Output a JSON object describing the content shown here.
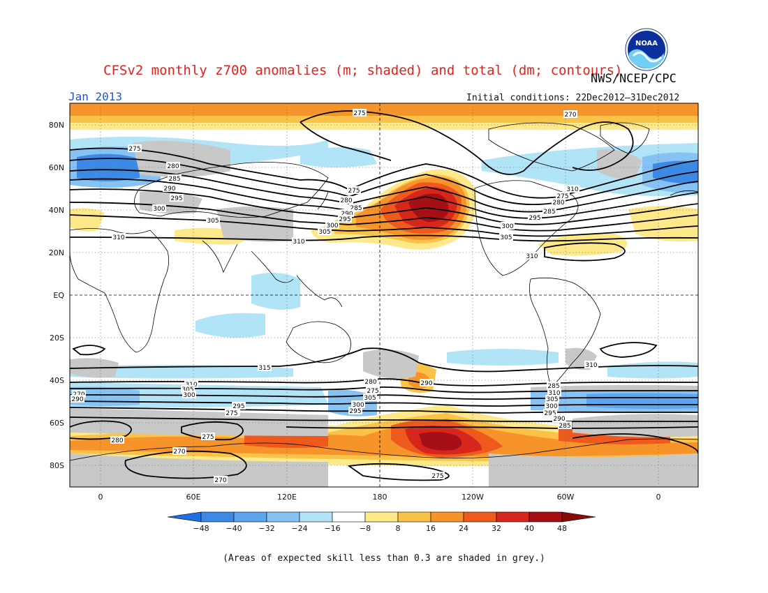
{
  "header": {
    "title": "CFSv2 monthly z700 anomalies (m; shaded) and total (dm; contours)",
    "agency": "NWS/NCEP/CPC",
    "month": "Jan 2013",
    "initial_conditions": "Initial conditions: 22Dec2012–31Dec2012",
    "logo_text": "NOAA"
  },
  "axes": {
    "x_ticks": [
      "0",
      "60E",
      "120E",
      "180",
      "120W",
      "60W",
      "0"
    ],
    "y_ticks": [
      "80N",
      "60N",
      "40N",
      "20N",
      "EQ",
      "20S",
      "40S",
      "60S",
      "80S"
    ]
  },
  "colorbar": {
    "ticks": [
      "−48",
      "−40",
      "−32",
      "−24",
      "−16",
      "−8",
      "8",
      "16",
      "24",
      "32",
      "40",
      "48"
    ],
    "colors": [
      "#1e6fe0",
      "#3d8ae6",
      "#5fa4ee",
      "#87c2f5",
      "#b2e4f7",
      "#ffffff",
      "#fde98a",
      "#fbc24a",
      "#f7932b",
      "#ee5a1e",
      "#d7261c",
      "#a50f15",
      "#8a0a0a"
    ]
  },
  "contour_labels": [
    {
      "text": "275"
    },
    {
      "text": "270"
    },
    {
      "text": "275"
    },
    {
      "text": "280"
    },
    {
      "text": "285"
    },
    {
      "text": "290"
    },
    {
      "text": "295"
    },
    {
      "text": "300"
    },
    {
      "text": "305"
    },
    {
      "text": "310"
    },
    {
      "text": "310"
    },
    {
      "text": "275"
    },
    {
      "text": "280"
    },
    {
      "text": "285"
    },
    {
      "text": "290"
    },
    {
      "text": "295"
    },
    {
      "text": "300"
    },
    {
      "text": "305"
    },
    {
      "text": "310"
    },
    {
      "text": "275"
    },
    {
      "text": "280"
    },
    {
      "text": "285"
    },
    {
      "text": "295"
    },
    {
      "text": "300"
    },
    {
      "text": "305"
    },
    {
      "text": "310"
    },
    {
      "text": "315"
    },
    {
      "text": "310"
    },
    {
      "text": "310"
    },
    {
      "text": "305"
    },
    {
      "text": "300"
    },
    {
      "text": "295"
    },
    {
      "text": "290"
    },
    {
      "text": "280"
    },
    {
      "text": "275"
    },
    {
      "text": "305"
    },
    {
      "text": "300"
    },
    {
      "text": "295"
    },
    {
      "text": "290"
    },
    {
      "text": "285"
    },
    {
      "text": "310"
    },
    {
      "text": "305"
    },
    {
      "text": "300"
    },
    {
      "text": "295"
    },
    {
      "text": "290"
    },
    {
      "text": "285"
    },
    {
      "text": "280"
    },
    {
      "text": "275"
    },
    {
      "text": "270"
    },
    {
      "text": "270"
    },
    {
      "text": "275"
    },
    {
      "text": "275"
    },
    {
      "text": "270"
    },
    {
      "text": "290"
    },
    {
      "text": "280"
    }
  ],
  "footnote": "(Areas of expected skill less than 0.3 are shaded in grey.)"
}
